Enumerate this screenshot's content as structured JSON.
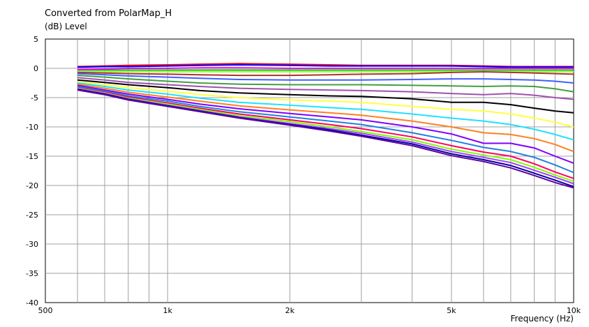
{
  "chart_data": {
    "type": "line",
    "title": "Converted from PolarMap_H",
    "ylabel": "(dB)  Level",
    "xlabel": "Frequency  (Hz)",
    "x_scale": "log",
    "xlim": [
      500,
      10000
    ],
    "ylim": [
      -40,
      5
    ],
    "y_ticks": [
      "5",
      "0",
      "-5",
      "-10",
      "-15",
      "-20",
      "-25",
      "-30",
      "-35",
      "-40"
    ],
    "x_ticks": [
      {
        "v": 500,
        "label": "500"
      },
      {
        "v": 1000,
        "label": "1k"
      },
      {
        "v": 2000,
        "label": "2k"
      },
      {
        "v": 5000,
        "label": "5k"
      },
      {
        "v": 10000,
        "label": "10k"
      }
    ],
    "grid": true,
    "x": [
      600,
      700,
      800,
      1000,
      1200,
      1500,
      2000,
      2500,
      3000,
      4000,
      5000,
      6000,
      7000,
      8000,
      9000,
      10000
    ],
    "series": [
      {
        "color": "#ff0000",
        "values": [
          0.3,
          0.4,
          0.5,
          0.6,
          0.7,
          0.8,
          0.7,
          0.6,
          0.5,
          0.5,
          0.5,
          0.4,
          0.3,
          0.3,
          0.3,
          0.3
        ]
      },
      {
        "color": "#0000ff",
        "values": [
          0.2,
          0.3,
          0.3,
          0.4,
          0.5,
          0.6,
          0.5,
          0.4,
          0.4,
          0.4,
          0.4,
          0.3,
          0.2,
          0.2,
          0.2,
          0.2
        ]
      },
      {
        "color": "#00c000",
        "values": [
          -0.3,
          -0.3,
          -0.3,
          -0.3,
          -0.3,
          -0.3,
          -0.3,
          -0.3,
          -0.3,
          -0.3,
          -0.3,
          -0.3,
          -0.3,
          -0.3,
          -0.3,
          -0.3
        ]
      },
      {
        "color": "#ff00ff",
        "values": [
          -0.2,
          -0.1,
          0.0,
          0.0,
          0.1,
          0.1,
          0.0,
          0.0,
          0.0,
          0.0,
          0.0,
          0.0,
          0.0,
          0.0,
          0.0,
          0.0
        ]
      },
      {
        "color": "#a0ff40",
        "values": [
          -0.6,
          -0.6,
          -0.6,
          -0.6,
          -0.6,
          -0.6,
          -0.6,
          -0.6,
          -0.6,
          -0.6,
          -0.6,
          -0.6,
          -0.6,
          -0.6,
          -0.6,
          -0.6
        ]
      },
      {
        "color": "#b03030",
        "values": [
          -0.7,
          -0.8,
          -0.9,
          -1.0,
          -1.1,
          -1.2,
          -1.2,
          -1.1,
          -1.0,
          -0.9,
          -0.7,
          -0.6,
          -0.7,
          -0.8,
          -0.9,
          -1.0
        ]
      },
      {
        "color": "#4060ff",
        "values": [
          -0.9,
          -1.1,
          -1.3,
          -1.5,
          -1.7,
          -1.9,
          -2.0,
          -2.0,
          -2.0,
          -1.9,
          -1.8,
          -1.8,
          -1.9,
          -2.0,
          -2.2,
          -2.5
        ]
      },
      {
        "color": "#40a040",
        "values": [
          -1.2,
          -1.5,
          -1.8,
          -2.2,
          -2.5,
          -2.7,
          -2.8,
          -2.8,
          -2.8,
          -2.9,
          -3.0,
          -3.1,
          -3.0,
          -3.1,
          -3.5,
          -4.0
        ]
      },
      {
        "color": "#a050b0",
        "values": [
          -1.6,
          -2.0,
          -2.4,
          -2.8,
          -3.1,
          -3.4,
          -3.6,
          -3.7,
          -3.8,
          -4.0,
          -4.3,
          -4.5,
          -4.3,
          -4.6,
          -5.0,
          -5.3
        ]
      },
      {
        "color": "#000000",
        "values": [
          -2.0,
          -2.4,
          -2.8,
          -3.3,
          -3.8,
          -4.2,
          -4.5,
          -4.7,
          -4.8,
          -5.2,
          -5.8,
          -5.8,
          -6.2,
          -6.8,
          -7.3,
          -7.6
        ]
      },
      {
        "color": "#ffff40",
        "values": [
          -2.3,
          -2.8,
          -3.3,
          -3.9,
          -4.5,
          -5.0,
          -5.4,
          -5.6,
          -5.8,
          -6.5,
          -7.0,
          -7.3,
          -7.8,
          -8.5,
          -9.2,
          -10.0
        ]
      },
      {
        "color": "#20e0ff",
        "values": [
          -2.5,
          -3.1,
          -3.7,
          -4.4,
          -5.1,
          -5.8,
          -6.3,
          -6.7,
          -7.0,
          -7.8,
          -8.5,
          -9.0,
          -9.6,
          -10.4,
          -11.3,
          -12.2
        ]
      },
      {
        "color": "#ff8020",
        "values": [
          -2.7,
          -3.4,
          -4.1,
          -4.9,
          -5.6,
          -6.4,
          -7.1,
          -7.6,
          -8.0,
          -9.0,
          -10.0,
          -11.0,
          -11.3,
          -12.0,
          -13.0,
          -14.2
        ]
      },
      {
        "color": "#8000ff",
        "values": [
          -2.9,
          -3.7,
          -4.4,
          -5.3,
          -6.1,
          -6.9,
          -7.7,
          -8.3,
          -8.8,
          -10.0,
          -11.2,
          -12.8,
          -12.8,
          -13.6,
          -15.0,
          -16.2
        ]
      },
      {
        "color": "#2080e0",
        "values": [
          -3.1,
          -3.9,
          -4.7,
          -5.6,
          -6.5,
          -7.4,
          -8.3,
          -9.0,
          -9.6,
          -11.0,
          -12.3,
          -13.5,
          -14.2,
          -15.2,
          -16.5,
          -17.8
        ]
      },
      {
        "color": "#ff0060",
        "values": [
          -3.3,
          -4.1,
          -4.9,
          -5.9,
          -6.8,
          -7.8,
          -8.8,
          -9.6,
          -10.3,
          -11.7,
          -13.2,
          -14.3,
          -15.0,
          -16.3,
          -17.7,
          -18.8
        ]
      },
      {
        "color": "#80ff00",
        "values": [
          -3.4,
          -4.2,
          -5.1,
          -6.1,
          -7.0,
          -8.1,
          -9.1,
          -10.0,
          -10.8,
          -12.2,
          -13.8,
          -14.8,
          -15.6,
          -16.9,
          -18.2,
          -19.3
        ]
      },
      {
        "color": "#a040ff",
        "values": [
          -3.5,
          -4.3,
          -5.2,
          -6.3,
          -7.2,
          -8.3,
          -9.4,
          -10.3,
          -11.1,
          -12.6,
          -14.2,
          -15.2,
          -16.1,
          -17.4,
          -18.6,
          -19.7
        ]
      },
      {
        "color": "#0000a0",
        "values": [
          -3.6,
          -4.4,
          -5.3,
          -6.4,
          -7.3,
          -8.4,
          -9.6,
          -10.5,
          -11.4,
          -12.9,
          -14.6,
          -15.6,
          -16.6,
          -17.9,
          -19.1,
          -20.2
        ]
      },
      {
        "color": "#6000a0",
        "values": [
          -3.7,
          -4.5,
          -5.4,
          -6.5,
          -7.4,
          -8.5,
          -9.7,
          -10.7,
          -11.6,
          -13.2,
          -14.9,
          -15.9,
          -17.0,
          -18.3,
          -19.5,
          -20.4
        ]
      }
    ]
  }
}
